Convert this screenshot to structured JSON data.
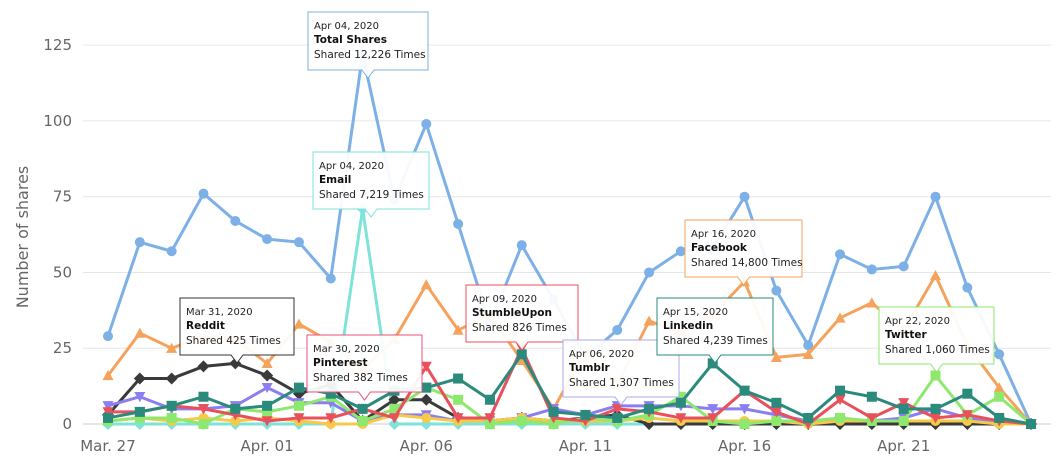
{
  "chart_data": {
    "type": "line",
    "title": "",
    "xlabel": "",
    "ylabel": "Number of shares",
    "ylim": [
      0,
      130
    ],
    "yticks": [
      0,
      25,
      50,
      75,
      100,
      125
    ],
    "grid": true,
    "x": [
      "Mar 27",
      "Mar 28",
      "Mar 29",
      "Mar 30",
      "Mar 31",
      "Apr 01",
      "Apr 02",
      "Apr 03",
      "Apr 04",
      "Apr 05",
      "Apr 06",
      "Apr 07",
      "Apr 08",
      "Apr 09",
      "Apr 10",
      "Apr 11",
      "Apr 12",
      "Apr 13",
      "Apr 14",
      "Apr 15",
      "Apr 16",
      "Apr 17",
      "Apr 18",
      "Apr 19",
      "Apr 20",
      "Apr 21",
      "Apr 22",
      "Apr 23",
      "Apr 24",
      "Apr 25"
    ],
    "xtick_labels": [
      {
        "index": 0,
        "label": "Mar. 27"
      },
      {
        "index": 5,
        "label": "Apr. 01"
      },
      {
        "index": 10,
        "label": "Apr. 06"
      },
      {
        "index": 15,
        "label": "Apr. 11"
      },
      {
        "index": 20,
        "label": "Apr. 16"
      },
      {
        "index": 25,
        "label": "Apr. 21"
      }
    ],
    "series": [
      {
        "name": "Total Shares",
        "color": "#7cb0e6",
        "marker": "circle",
        "values": [
          29,
          60,
          57,
          76,
          67,
          61,
          60,
          48,
          122,
          74,
          99,
          66,
          33,
          59,
          41,
          22,
          31,
          50,
          57,
          58,
          75,
          44,
          26,
          56,
          51,
          52,
          75,
          45,
          23,
          0
        ]
      },
      {
        "name": "Facebook",
        "color": "#f5a35c",
        "marker": "triangle",
        "values": [
          16,
          30,
          25,
          29,
          28,
          20,
          33,
          27,
          18,
          28,
          46,
          31,
          36,
          21,
          5,
          24,
          13,
          34,
          30,
          36,
          47,
          22,
          23,
          35,
          40,
          31,
          49,
          26,
          12,
          0
        ]
      },
      {
        "name": "Email",
        "color": "#7ee3d8",
        "marker": "diamond",
        "values": [
          0,
          0,
          0,
          0,
          0,
          0,
          0,
          0,
          71,
          0,
          0,
          0,
          0,
          0,
          0,
          0,
          0,
          0,
          0,
          0,
          0,
          0,
          0,
          0,
          0,
          0,
          0,
          0,
          0,
          0
        ]
      },
      {
        "name": "Linkedin",
        "color": "#2a8a7c",
        "marker": "square",
        "values": [
          2,
          4,
          6,
          9,
          5,
          6,
          12,
          10,
          5,
          11,
          12,
          15,
          8,
          23,
          4,
          3,
          2,
          5,
          7,
          20,
          11,
          7,
          2,
          11,
          9,
          5,
          5,
          10,
          2,
          0
        ]
      },
      {
        "name": "StumbleUpon",
        "color": "#e8505b",
        "marker": "triangle-down",
        "values": [
          4,
          4,
          6,
          5,
          3,
          1,
          2,
          2,
          5,
          2,
          19,
          2,
          2,
          25,
          2,
          1,
          5,
          4,
          2,
          2,
          11,
          4,
          0,
          8,
          2,
          7,
          2,
          3,
          1,
          0
        ]
      },
      {
        "name": "Reddit",
        "color": "#3a3a3a",
        "marker": "diamond",
        "values": [
          3,
          15,
          15,
          19,
          20,
          16,
          10,
          13,
          1,
          8,
          8,
          2,
          1,
          2,
          1,
          2,
          3,
          0,
          0,
          0,
          0,
          0,
          0,
          0,
          0,
          0,
          0,
          0,
          0,
          0
        ]
      },
      {
        "name": "Pinterest",
        "color": "#8a7ef0",
        "marker": "triangle-down",
        "values": [
          6,
          9,
          5,
          5,
          6,
          12,
          7,
          7,
          1,
          3,
          3,
          1,
          1,
          2,
          5,
          3,
          6,
          6,
          6,
          5,
          5,
          3,
          1,
          1,
          1,
          2,
          5,
          2,
          0,
          0
        ]
      },
      {
        "name": "Tumblr",
        "color": "#f7c948",
        "marker": "circle",
        "values": [
          1,
          2,
          1,
          2,
          1,
          2,
          1,
          0,
          0,
          3,
          2,
          1,
          1,
          2,
          1,
          1,
          1,
          2,
          1,
          1,
          1,
          1,
          0,
          1,
          1,
          1,
          1,
          1,
          0,
          0
        ]
      },
      {
        "name": "Twitter",
        "color": "#8ee86e",
        "marker": "square",
        "values": [
          1,
          2,
          2,
          0,
          5,
          4,
          6,
          9,
          1,
          5,
          12,
          8,
          0,
          1,
          0,
          2,
          1,
          3,
          9,
          1,
          0,
          1,
          1,
          2,
          1,
          1,
          16,
          3,
          9,
          0
        ]
      }
    ],
    "tooltips": [
      {
        "date": "Apr 04, 2020",
        "series": "Total Shares",
        "text": "Shared 12,226 Times",
        "color": "#7cb0e6"
      },
      {
        "date": "Apr 04, 2020",
        "series": "Email",
        "text": "Shared 7,219 Times",
        "color": "#7ee3d8"
      },
      {
        "date": "Mar 31, 2020",
        "series": "Reddit",
        "text": "Shared 425 Times",
        "color": "#333333"
      },
      {
        "date": "Mar 30, 2020",
        "series": "Pinterest",
        "text": "Shared 382 Times",
        "color": "#e8507a"
      },
      {
        "date": "Apr 09, 2020",
        "series": "StumbleUpon",
        "text": "Shared 826 Times",
        "color": "#e8505b"
      },
      {
        "date": "Apr 06, 2020",
        "series": "Tumblr",
        "text": "Shared 1,307 Times",
        "color": "#aaaaee"
      },
      {
        "date": "Apr 15, 2020",
        "series": "Linkedin",
        "text": "Shared 4,239 Times",
        "color": "#2a8a7c"
      },
      {
        "date": "Apr 16, 2020",
        "series": "Facebook",
        "text": "Shared 14,800 Times",
        "color": "#f5a35c"
      },
      {
        "date": "Apr 22, 2020",
        "series": "Twitter",
        "text": "Shared 1,060 Times",
        "color": "#8ee86e"
      }
    ]
  }
}
